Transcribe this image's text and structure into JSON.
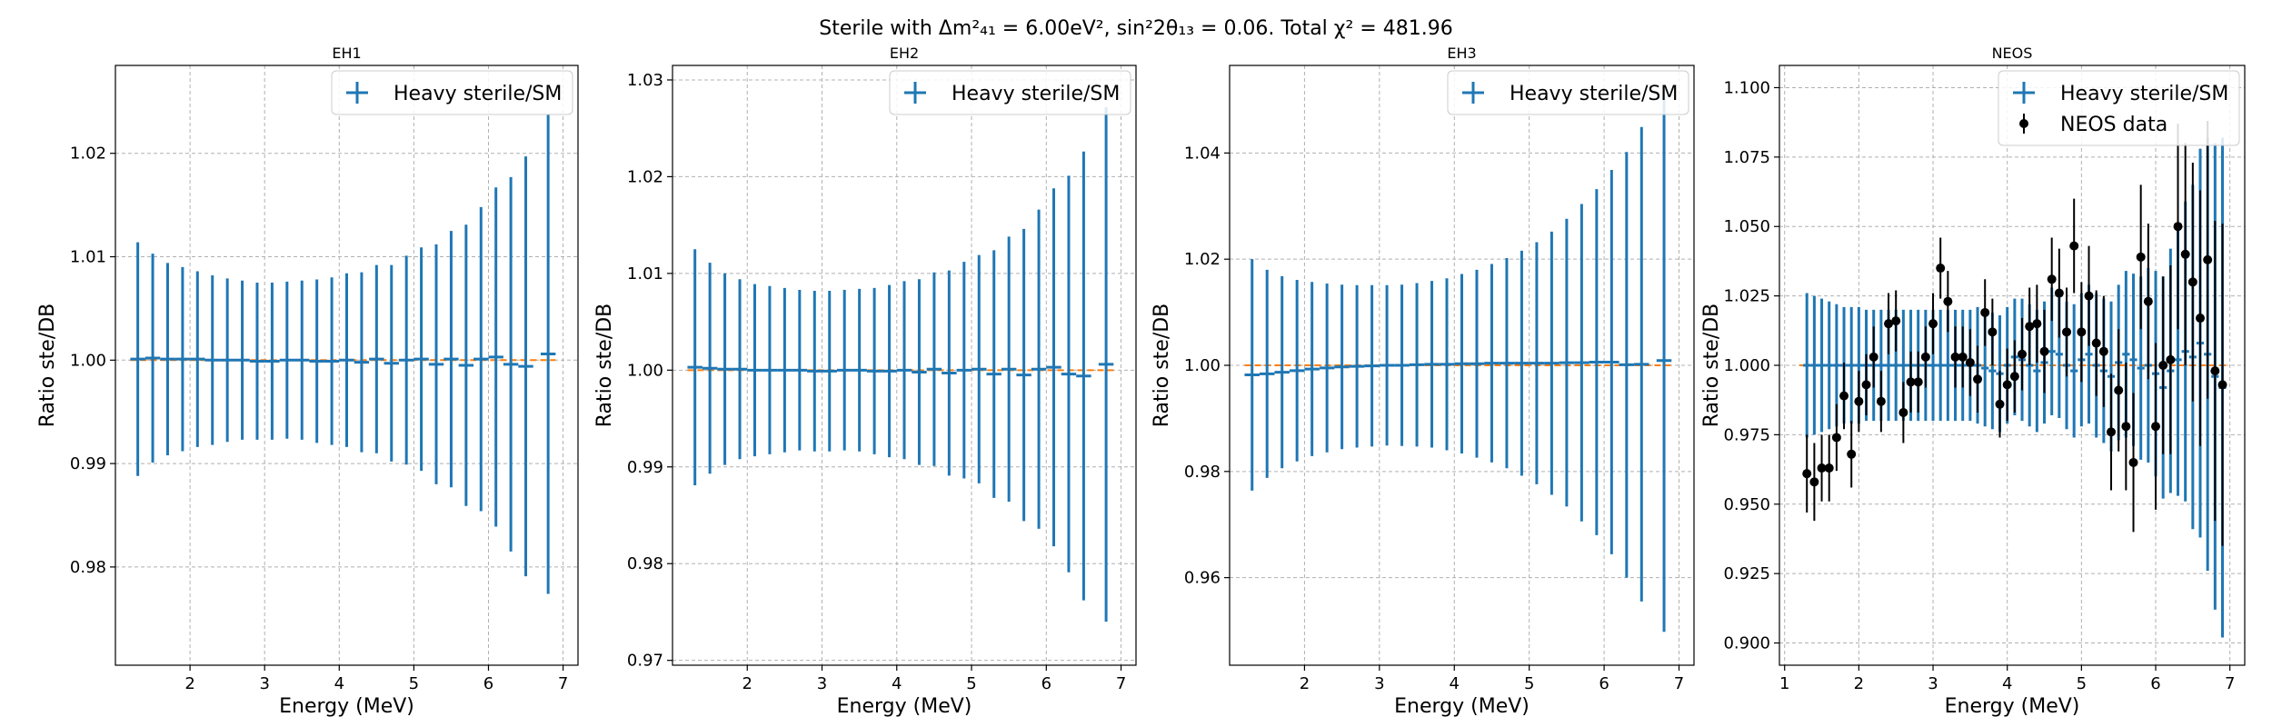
{
  "figure": {
    "suptitle": "Sterile with Δm²₄₁ = 6.00eV², sin²2θ₁₃ = 0.06. Total χ² = 481.96"
  },
  "colors": {
    "model": "#1f77b4",
    "reference": "#ff7f0e",
    "data": "#000000"
  },
  "chart_data": [
    {
      "type": "scatter",
      "title": "EH1",
      "xlabel": "Energy (MeV)",
      "ylabel": "Ratio ste/DB",
      "xlim": [
        1.0,
        7.2
      ],
      "ylim": [
        0.9705,
        1.0285
      ],
      "xticks": [
        2,
        3,
        4,
        5,
        6,
        7
      ],
      "yticks": [
        0.98,
        0.99,
        1.0,
        1.01,
        1.02
      ],
      "ytick_labels": [
        "0.98",
        "0.99",
        "1.00",
        "1.01",
        "1.02"
      ],
      "grid": true,
      "legend": {
        "position": "top-right",
        "entries": [
          "Heavy sterile/SM"
        ]
      },
      "reference_line": 1.0,
      "series": [
        {
          "name": "Heavy sterile/SM",
          "x": [
            1.3,
            1.5,
            1.7,
            1.9,
            2.1,
            2.3,
            2.5,
            2.7,
            2.9,
            3.1,
            3.3,
            3.5,
            3.7,
            3.9,
            4.1,
            4.3,
            4.5,
            4.7,
            4.9,
            5.1,
            5.3,
            5.5,
            5.7,
            5.9,
            6.1,
            6.3,
            6.5,
            6.8
          ],
          "y": [
            1.0001,
            1.0002,
            1.0001,
            1.0001,
            1.0001,
            1.0,
            1.0,
            1.0,
            0.9999,
            0.9999,
            1.0,
            1.0,
            0.9999,
            0.9999,
            1.0,
            0.9998,
            1.0001,
            0.9997,
            1.0,
            1.0001,
            0.9996,
            1.0001,
            0.9995,
            1.0001,
            1.0003,
            0.9996,
            0.9994,
            1.0006
          ],
          "yerr": [
            0.0113,
            0.0101,
            0.0093,
            0.0089,
            0.0085,
            0.0082,
            0.0079,
            0.0077,
            0.0076,
            0.0076,
            0.0076,
            0.0077,
            0.0079,
            0.0081,
            0.0084,
            0.0087,
            0.0091,
            0.0095,
            0.0101,
            0.0108,
            0.0116,
            0.0124,
            0.0136,
            0.0147,
            0.0164,
            0.0181,
            0.0203,
            0.0232
          ],
          "xerr": 0.1
        }
      ]
    },
    {
      "type": "scatter",
      "title": "EH2",
      "xlabel": "Energy (MeV)",
      "ylabel": "Ratio ste/DB",
      "xlim": [
        1.0,
        7.2
      ],
      "ylim": [
        0.9695,
        1.0315
      ],
      "xticks": [
        2,
        3,
        4,
        5,
        6,
        7
      ],
      "yticks": [
        0.97,
        0.98,
        0.99,
        1.0,
        1.01,
        1.02,
        1.03
      ],
      "ytick_labels": [
        "0.97",
        "0.98",
        "0.99",
        "1.00",
        "1.01",
        "1.02",
        "1.03"
      ],
      "grid": true,
      "legend": {
        "position": "top-right",
        "entries": [
          "Heavy sterile/SM"
        ]
      },
      "reference_line": 1.0,
      "series": [
        {
          "name": "Heavy sterile/SM",
          "x": [
            1.3,
            1.5,
            1.7,
            1.9,
            2.1,
            2.3,
            2.5,
            2.7,
            2.9,
            3.1,
            3.3,
            3.5,
            3.7,
            3.9,
            4.1,
            4.3,
            4.5,
            4.7,
            4.9,
            5.1,
            5.3,
            5.5,
            5.7,
            5.9,
            6.1,
            6.3,
            6.5,
            6.8
          ],
          "y": [
            1.0003,
            1.0002,
            1.0001,
            1.0001,
            1.0,
            1.0,
            1.0,
            1.0,
            0.9999,
            0.9999,
            1.0,
            1.0,
            0.9999,
            0.9999,
            1.0,
            0.9998,
            1.0001,
            0.9997,
            1.0,
            1.0001,
            0.9996,
            1.0001,
            0.9995,
            1.0001,
            1.0003,
            0.9996,
            0.9994,
            1.0006
          ],
          "yerr": [
            0.0122,
            0.0109,
            0.0099,
            0.0093,
            0.0089,
            0.0087,
            0.0085,
            0.0083,
            0.0083,
            0.0083,
            0.0083,
            0.0084,
            0.0086,
            0.0089,
            0.0092,
            0.0096,
            0.01,
            0.0106,
            0.0112,
            0.0118,
            0.0128,
            0.0137,
            0.0151,
            0.0165,
            0.0185,
            0.0205,
            0.0232,
            0.0266
          ],
          "xerr": 0.1
        }
      ]
    },
    {
      "type": "scatter",
      "title": "EH3",
      "xlabel": "Energy (MeV)",
      "ylabel": "Ratio ste/DB",
      "xlim": [
        1.0,
        7.2
      ],
      "ylim": [
        0.9435,
        1.0565
      ],
      "xticks": [
        2,
        3,
        4,
        5,
        6,
        7
      ],
      "yticks": [
        0.96,
        0.98,
        1.0,
        1.02,
        1.04
      ],
      "ytick_labels": [
        "0.96",
        "0.98",
        "1.00",
        "1.02",
        "1.04"
      ],
      "grid": true,
      "legend": {
        "position": "top-right",
        "entries": [
          "Heavy sterile/SM"
        ]
      },
      "reference_line": 1.0,
      "series": [
        {
          "name": "Heavy sterile/SM",
          "x": [
            1.3,
            1.5,
            1.7,
            1.9,
            2.1,
            2.3,
            2.5,
            2.7,
            2.9,
            3.1,
            3.3,
            3.5,
            3.7,
            3.9,
            4.1,
            4.3,
            4.5,
            4.7,
            4.9,
            5.1,
            5.3,
            5.5,
            5.7,
            5.9,
            6.1,
            6.3,
            6.5,
            6.8
          ],
          "y": [
            0.9982,
            0.9984,
            0.9987,
            0.999,
            0.9993,
            0.9995,
            0.9997,
            0.9998,
            0.9999,
            1.0,
            1.0,
            1.0001,
            1.0002,
            1.0002,
            1.0003,
            1.0003,
            1.0004,
            1.0004,
            1.0004,
            1.0004,
            1.0004,
            1.0005,
            1.0005,
            1.0006,
            1.0006,
            1.0001,
            1.0002,
            1.0009
          ],
          "yerr": [
            0.0218,
            0.0196,
            0.0181,
            0.0171,
            0.0164,
            0.0159,
            0.0155,
            0.0153,
            0.0152,
            0.0151,
            0.0152,
            0.0154,
            0.0157,
            0.0162,
            0.0169,
            0.0177,
            0.0187,
            0.0198,
            0.0212,
            0.0228,
            0.0248,
            0.0271,
            0.0299,
            0.0326,
            0.0362,
            0.0401,
            0.0447,
            0.0511
          ],
          "xerr": 0.1
        }
      ]
    },
    {
      "type": "scatter",
      "title": "NEOS",
      "xlabel": "Energy (MeV)",
      "ylabel": "Ratio ste/DB",
      "xlim": [
        0.93,
        7.2
      ],
      "ylim": [
        0.892,
        1.108
      ],
      "xticks": [
        1,
        2,
        3,
        4,
        5,
        6,
        7
      ],
      "yticks": [
        0.9,
        0.925,
        0.95,
        0.975,
        1.0,
        1.025,
        1.05,
        1.075,
        1.1
      ],
      "ytick_labels": [
        "0.900",
        "0.925",
        "0.950",
        "0.975",
        "1.000",
        "1.025",
        "1.050",
        "1.075",
        "1.100"
      ],
      "grid": true,
      "legend": {
        "position": "top-right",
        "entries": [
          "Heavy sterile/SM",
          "NEOS data"
        ]
      },
      "reference_line": 1.0,
      "series": [
        {
          "name": "Heavy sterile/SM",
          "x": [
            1.3,
            1.4,
            1.5,
            1.6,
            1.7,
            1.8,
            1.9,
            2.0,
            2.1,
            2.2,
            2.3,
            2.4,
            2.5,
            2.6,
            2.7,
            2.8,
            2.9,
            3.0,
            3.1,
            3.2,
            3.3,
            3.4,
            3.5,
            3.6,
            3.7,
            3.8,
            3.9,
            4.0,
            4.1,
            4.2,
            4.3,
            4.4,
            4.5,
            4.6,
            4.7,
            4.8,
            4.9,
            5.0,
            5.1,
            5.2,
            5.3,
            5.4,
            5.5,
            5.6,
            5.7,
            5.8,
            5.9,
            6.0,
            6.1,
            6.2,
            6.3,
            6.4,
            6.5,
            6.6,
            6.7,
            6.8,
            6.9
          ],
          "y": [
            1.0,
            1.0,
            1.0,
            1.0,
            1.0,
            1.0,
            1.0,
            1.0,
            1.0,
            1.0,
            1.0,
            1.0,
            1.0,
            1.0,
            1.0,
            1.0,
            1.0,
            1.0,
            1.0,
            1.0,
            1.0,
            1.0,
            1.0,
            1.0,
            0.999,
            0.998,
            0.997,
            1.0,
            1.003,
            1.002,
            1.0,
            0.998,
            1.001,
            1.005,
            1.004,
            1.0,
            0.998,
            1.002,
            1.004,
            1.0,
            0.998,
            0.996,
            1.001,
            1.004,
            1.002,
            0.999,
            1.0,
            0.997,
            0.992,
            0.998,
            1.002,
            1.005,
            1.003,
            1.008,
            1.004,
            0.996,
            0.992
          ],
          "yerr": [
            0.026,
            0.025,
            0.024,
            0.023,
            0.022,
            0.021,
            0.021,
            0.021,
            0.02,
            0.02,
            0.02,
            0.02,
            0.02,
            0.02,
            0.02,
            0.02,
            0.02,
            0.02,
            0.02,
            0.02,
            0.02,
            0.02,
            0.02,
            0.021,
            0.021,
            0.021,
            0.021,
            0.021,
            0.021,
            0.022,
            0.022,
            0.022,
            0.022,
            0.023,
            0.023,
            0.023,
            0.024,
            0.024,
            0.025,
            0.026,
            0.026,
            0.027,
            0.028,
            0.03,
            0.031,
            0.033,
            0.035,
            0.037,
            0.04,
            0.044,
            0.049,
            0.054,
            0.062,
            0.07,
            0.078,
            0.084,
            0.09
          ],
          "xerr": 0.05
        },
        {
          "name": "NEOS data",
          "x": [
            1.3,
            1.4,
            1.5,
            1.6,
            1.7,
            1.8,
            1.9,
            2.0,
            2.1,
            2.2,
            2.3,
            2.4,
            2.5,
            2.6,
            2.7,
            2.8,
            2.9,
            3.0,
            3.1,
            3.2,
            3.3,
            3.4,
            3.5,
            3.6,
            3.7,
            3.8,
            3.9,
            4.0,
            4.1,
            4.2,
            4.3,
            4.4,
            4.5,
            4.6,
            4.7,
            4.8,
            4.9,
            5.0,
            5.1,
            5.2,
            5.3,
            5.4,
            5.5,
            5.6,
            5.7,
            5.8,
            5.9,
            6.0,
            6.1,
            6.2,
            6.3,
            6.4,
            6.5,
            6.6,
            6.7,
            6.8,
            6.9
          ],
          "y": [
            0.961,
            0.958,
            0.963,
            0.963,
            0.974,
            0.989,
            0.968,
            0.987,
            0.993,
            1.003,
            0.987,
            1.015,
            1.016,
            0.983,
            0.994,
            0.994,
            1.003,
            1.015,
            1.035,
            1.023,
            1.003,
            1.003,
            1.001,
            0.995,
            1.019,
            1.012,
            0.986,
            0.993,
            0.996,
            1.004,
            1.014,
            1.015,
            1.005,
            1.031,
            1.026,
            1.012,
            1.043,
            1.012,
            1.025,
            1.008,
            1.005,
            0.976,
            0.991,
            0.978,
            0.965,
            1.039,
            1.023,
            0.978,
            1.0,
            1.002,
            1.05,
            1.04,
            1.03,
            1.017,
            1.038,
            0.998,
            0.993
          ],
          "yerr": [
            0.014,
            0.014,
            0.012,
            0.012,
            0.012,
            0.012,
            0.012,
            0.011,
            0.011,
            0.011,
            0.011,
            0.011,
            0.011,
            0.011,
            0.011,
            0.011,
            0.011,
            0.011,
            0.011,
            0.011,
            0.011,
            0.011,
            0.012,
            0.012,
            0.012,
            0.012,
            0.012,
            0.013,
            0.013,
            0.013,
            0.014,
            0.014,
            0.015,
            0.015,
            0.016,
            0.016,
            0.017,
            0.018,
            0.018,
            0.019,
            0.02,
            0.021,
            0.022,
            0.023,
            0.025,
            0.026,
            0.028,
            0.03,
            0.032,
            0.034,
            0.037,
            0.04,
            0.043,
            0.046,
            0.05,
            0.054,
            0.058
          ]
        }
      ]
    }
  ]
}
